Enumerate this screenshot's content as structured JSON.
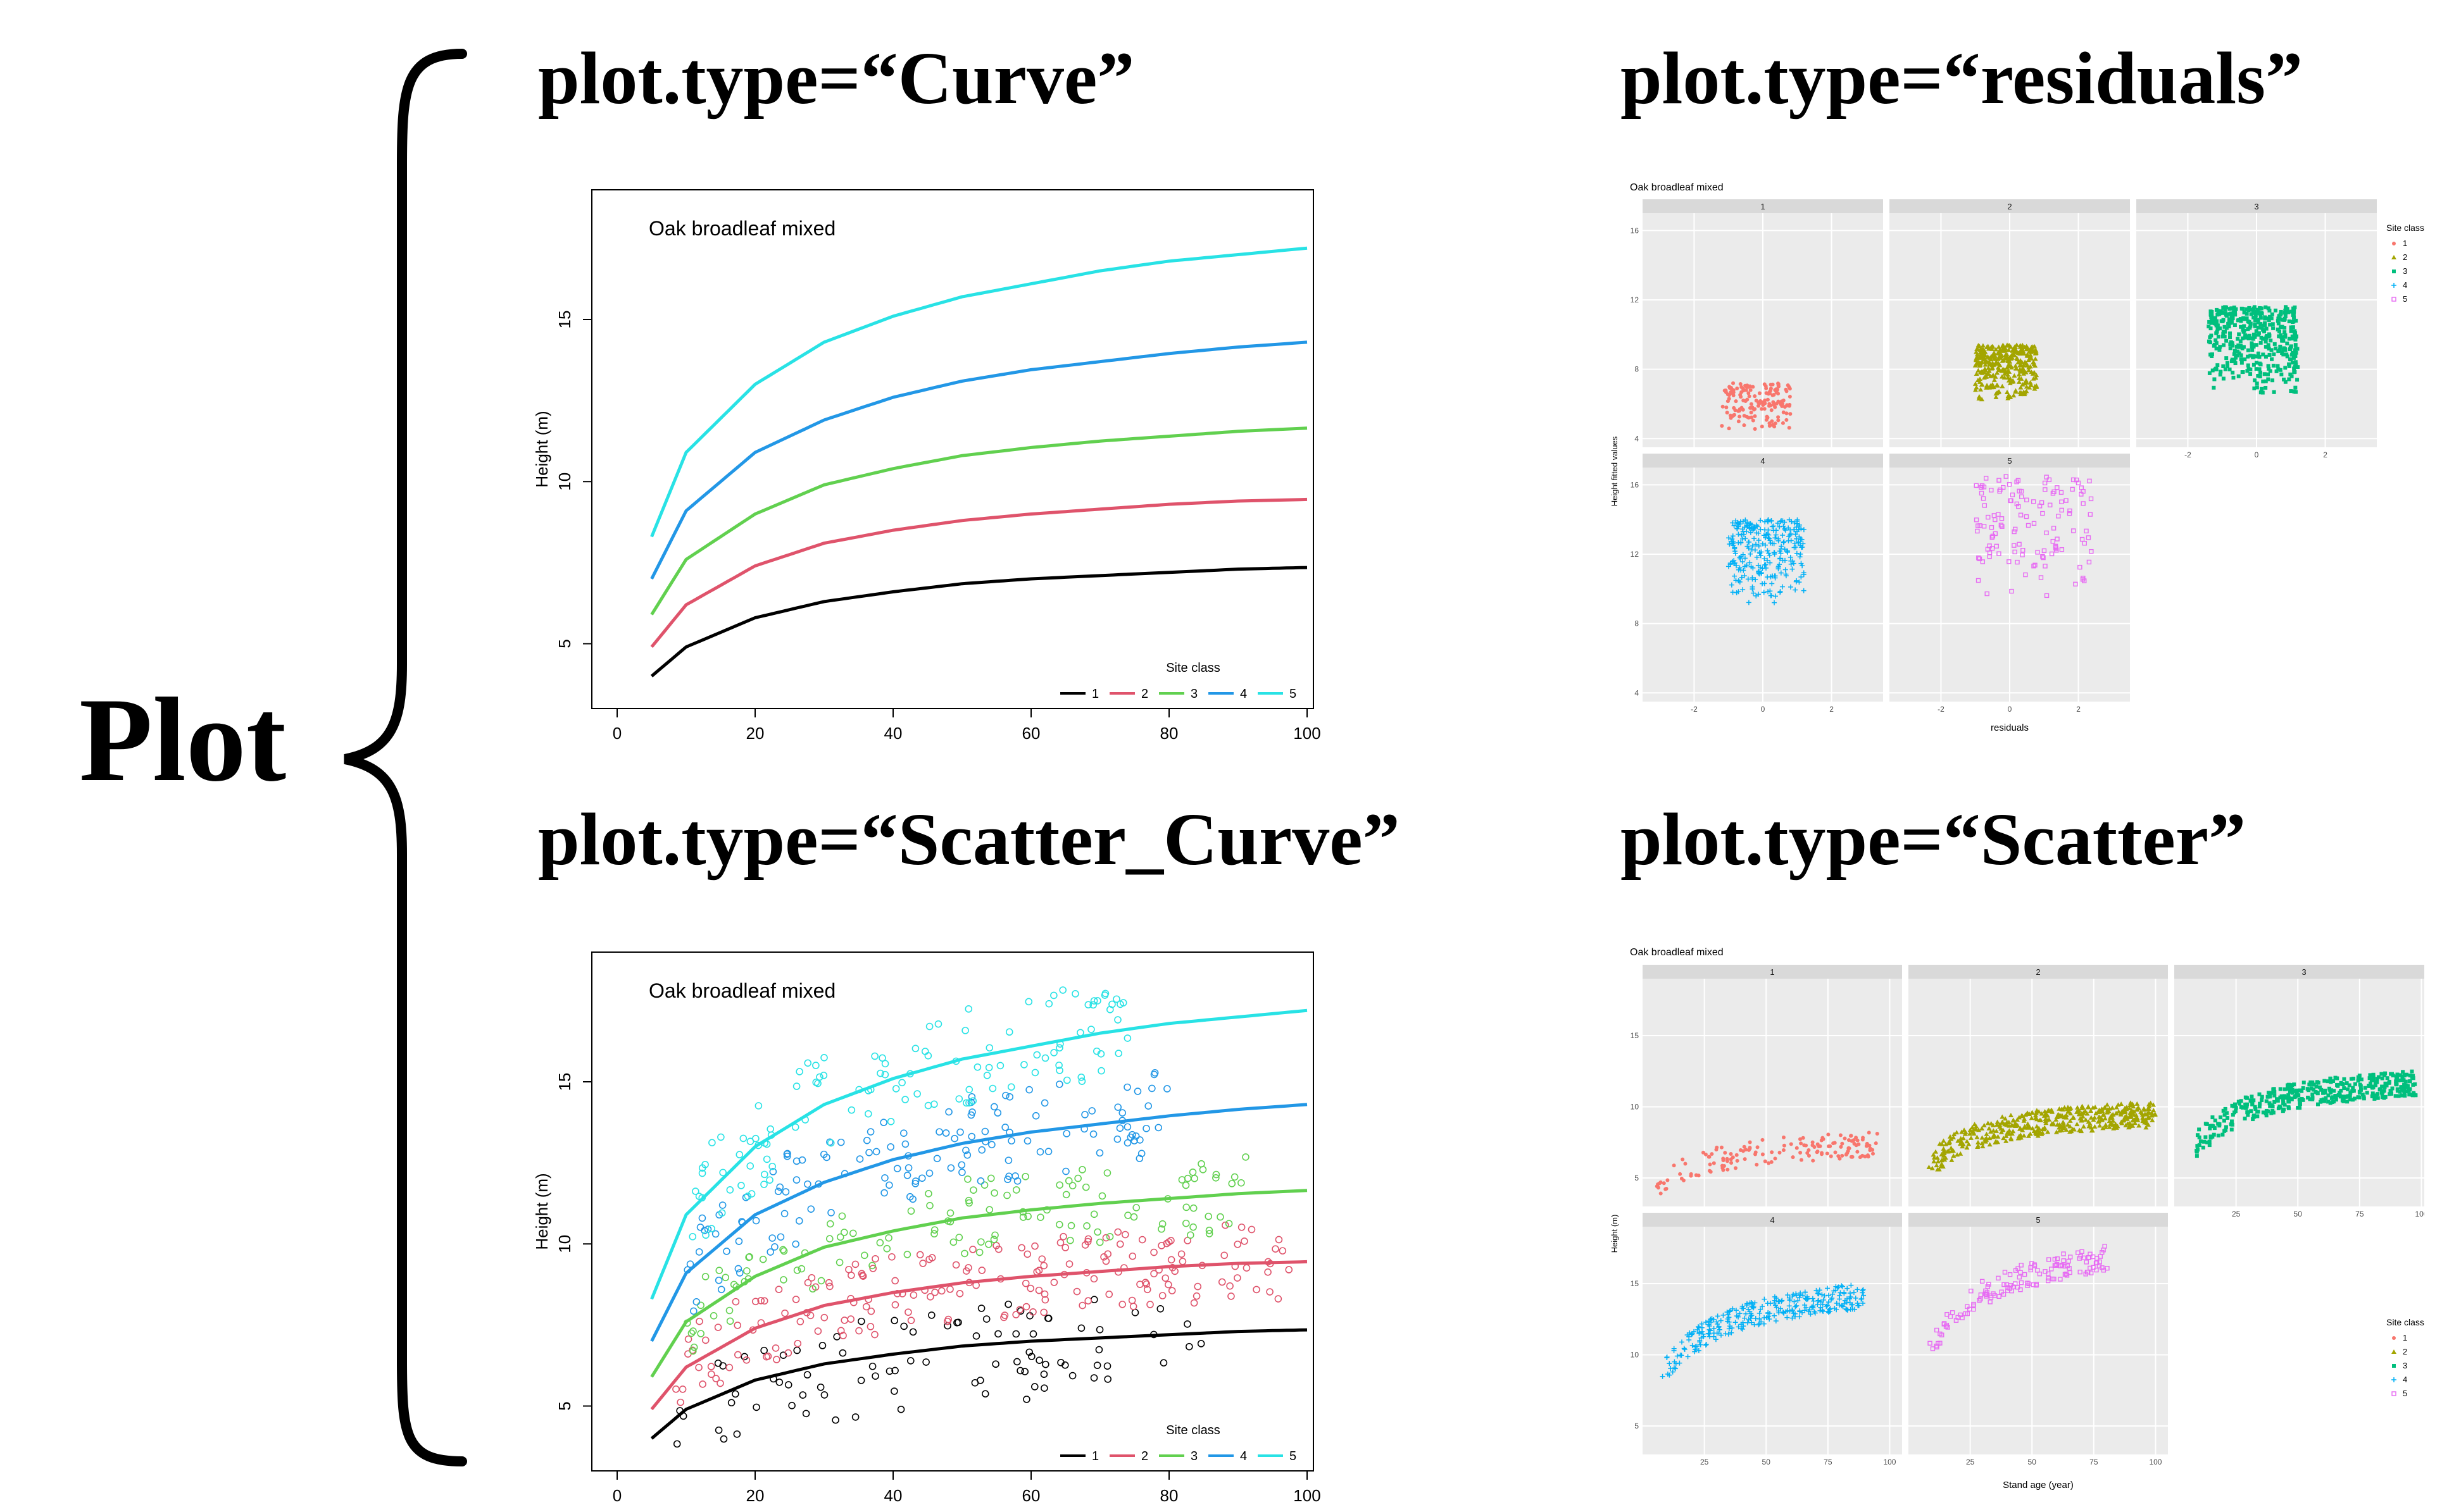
{
  "main_label": "Plot",
  "headings": {
    "curve": "plot.type=“Curve”",
    "residuals": "plot.type=“residuals”",
    "scatter_curve": "plot.type=“Scatter_Curve”",
    "scatter": "plot.type=“Scatter”"
  },
  "colors": {
    "1": "#000000",
    "2": "#DF536B",
    "3": "#61D04F",
    "4": "#2297E6",
    "5": "#28E2E5",
    "gg1": "#F8766D",
    "gg2": "#A3A500",
    "gg3": "#00BF7D",
    "gg4": "#00B0F6",
    "gg5": "#E76BF3"
  },
  "chart_data": [
    {
      "id": "curve",
      "type": "line",
      "title": "Oak broadleaf mixed",
      "xlabel": "Stand age (year)",
      "ylabel": "Height (m)",
      "xlim": [
        0,
        100
      ],
      "ylim": [
        3,
        19
      ],
      "xticks": [
        "0",
        "20",
        "40",
        "60",
        "80",
        "100"
      ],
      "yticks": [
        "5",
        "10",
        "15"
      ],
      "legend": {
        "title": "Site class",
        "placement": "bottom-right",
        "entries": [
          "1",
          "2",
          "3",
          "4",
          "5"
        ]
      },
      "x": [
        5,
        10,
        20,
        30,
        40,
        50,
        60,
        70,
        80,
        90,
        100
      ],
      "series": [
        {
          "name": "1",
          "values": [
            4.0,
            4.9,
            5.8,
            6.3,
            6.6,
            6.85,
            7.0,
            7.1,
            7.2,
            7.3,
            7.35
          ]
        },
        {
          "name": "2",
          "values": [
            4.9,
            6.2,
            7.4,
            8.1,
            8.5,
            8.8,
            9.0,
            9.15,
            9.3,
            9.4,
            9.45
          ]
        },
        {
          "name": "3",
          "values": [
            5.9,
            7.6,
            9.0,
            9.9,
            10.4,
            10.8,
            11.05,
            11.25,
            11.4,
            11.55,
            11.65
          ]
        },
        {
          "name": "4",
          "values": [
            7.0,
            9.1,
            10.9,
            11.9,
            12.6,
            13.1,
            13.45,
            13.7,
            13.95,
            14.15,
            14.3
          ]
        },
        {
          "name": "5",
          "values": [
            8.3,
            10.9,
            13.0,
            14.3,
            15.1,
            15.7,
            16.1,
            16.5,
            16.8,
            17.0,
            17.2
          ]
        }
      ]
    },
    {
      "id": "scatter_curve",
      "type": "scatter",
      "title": "Oak broadleaf mixed",
      "xlabel": "Stand age (year)",
      "ylabel": "Height (m)",
      "xlim": [
        0,
        100
      ],
      "ylim": [
        3,
        19
      ],
      "xticks": [
        "0",
        "20",
        "40",
        "60",
        "80",
        "100"
      ],
      "yticks": [
        "5",
        "10",
        "15"
      ],
      "legend": {
        "title": "Site class",
        "placement": "bottom-right",
        "entries": [
          "1",
          "2",
          "3",
          "4",
          "5"
        ]
      },
      "scatter": {
        "1": {
          "x_range": [
            8,
            85
          ],
          "y_offset_range": [
            -1.8,
            1.2
          ],
          "count": 90
        },
        "2": {
          "x_range": [
            8,
            98
          ],
          "y_offset_range": [
            -1.2,
            1.2
          ],
          "count": 190
        },
        "3": {
          "x_range": [
            10,
            92
          ],
          "y_offset_range": [
            -1.2,
            1.2
          ],
          "count": 120
        },
        "4": {
          "x_range": [
            10,
            80
          ],
          "y_offset_range": [
            -1.5,
            1.5
          ],
          "count": 140
        },
        "5": {
          "x_range": [
            10,
            75
          ],
          "y_offset_range": [
            -1.4,
            1.6
          ],
          "count": 120
        }
      }
    },
    {
      "id": "residuals",
      "type": "scatter",
      "title": "Oak broadleaf mixed",
      "xlabel": "residuals",
      "ylabel": "Height fitted values",
      "facets": [
        "1",
        "2",
        "3",
        "4",
        "5"
      ],
      "xlim": [
        -3.5,
        3.5
      ],
      "ylim": [
        3.5,
        17
      ],
      "xticks": [
        "-2",
        "0",
        "2"
      ],
      "yticks": [
        "4",
        "8",
        "12",
        "16"
      ],
      "legend": {
        "title": "Site class",
        "placement": "right",
        "entries": [
          "1",
          "2",
          "3",
          "4",
          "5"
        ]
      },
      "clusters": {
        "1": {
          "x_range": [
            -1.2,
            0.8
          ],
          "y_range": [
            4.5,
            7.2
          ],
          "count": 160
        },
        "2": {
          "x_range": [
            -1.0,
            0.8
          ],
          "y_range": [
            6.2,
            9.4
          ],
          "count": 330
        },
        "3": {
          "x_range": [
            -1.4,
            1.2
          ],
          "y_range": [
            6.5,
            11.6
          ],
          "count": 420
        },
        "4": {
          "x_range": [
            -1.0,
            1.2
          ],
          "y_range": [
            9.0,
            14.0
          ],
          "count": 280
        },
        "5": {
          "x_range": [
            -1.0,
            2.4
          ],
          "y_range": [
            9.5,
            16.5
          ],
          "count": 130
        }
      }
    },
    {
      "id": "scatter",
      "type": "scatter",
      "title": "Oak broadleaf mixed",
      "xlabel": "Stand age (year)",
      "ylabel": "Height (m)",
      "facets": [
        "1",
        "2",
        "3",
        "4",
        "5"
      ],
      "xlim": [
        0,
        105
      ],
      "ylim": [
        3,
        19
      ],
      "xticks": [
        "25",
        "50",
        "75",
        "100"
      ],
      "yticks": [
        "5",
        "10",
        "15"
      ],
      "legend": {
        "title": "Site class",
        "placement": "right",
        "entries": [
          "1",
          "2",
          "3",
          "4",
          "5"
        ]
      },
      "clusters": {
        "1": {
          "x_range": [
            5,
            95
          ],
          "count": 150
        },
        "2": {
          "x_range": [
            8,
            100
          ],
          "count": 450
        },
        "3": {
          "x_range": [
            8,
            98
          ],
          "count": 400
        },
        "4": {
          "x_range": [
            8,
            90
          ],
          "count": 300
        },
        "5": {
          "x_range": [
            8,
            82
          ],
          "count": 140
        }
      }
    }
  ]
}
